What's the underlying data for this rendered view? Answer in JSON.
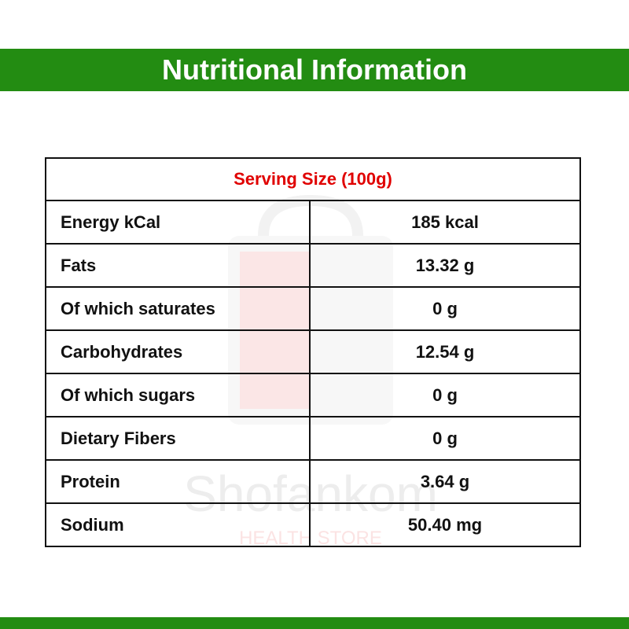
{
  "header": {
    "title": "Nutritional Information"
  },
  "watermark": {
    "brand": "Shofankom",
    "tagline": "HEALTH STORE"
  },
  "table": {
    "serving": "Serving Size (100g)",
    "rows": [
      [
        "Energy kCal",
        "185 kcal"
      ],
      [
        "Fats",
        "13.32 g"
      ],
      [
        "Of which saturates",
        "0 g"
      ],
      [
        "Carbohydrates",
        "12.54 g"
      ],
      [
        "Of which sugars",
        "0 g"
      ],
      [
        "Dietary Fibers",
        "0 g"
      ],
      [
        "Protein",
        "3.64 g"
      ],
      [
        "Sodium",
        "50.40 mg"
      ]
    ]
  }
}
